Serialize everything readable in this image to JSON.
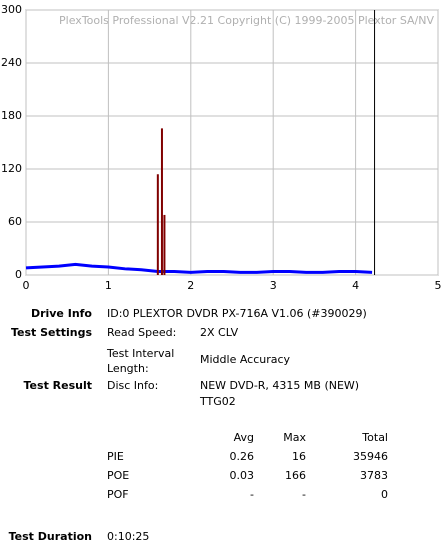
{
  "chart_data": {
    "type": "line",
    "watermark": "PlexTools Professional V2.21 Copyright (C) 1999-2005 Plextor SA/NV",
    "xlim": [
      0,
      5
    ],
    "xticks": [
      0,
      1,
      2,
      3,
      4,
      5
    ],
    "ylim": [
      0,
      300
    ],
    "yticks": [
      0,
      60,
      120,
      180,
      240,
      300
    ],
    "grid": true,
    "series": [
      {
        "name": "PIE",
        "color": "#0000ff",
        "style": "line",
        "x": [
          0,
          0.2,
          0.4,
          0.6,
          0.8,
          1.0,
          1.2,
          1.4,
          1.6,
          1.8,
          2.0,
          2.2,
          2.4,
          2.6,
          2.8,
          3.0,
          3.2,
          3.4,
          3.6,
          3.8,
          4.0,
          4.2
        ],
        "values": [
          8,
          9,
          10,
          12,
          10,
          9,
          7,
          6,
          4,
          4,
          3,
          4,
          4,
          3,
          3,
          4,
          4,
          3,
          3,
          4,
          4,
          3
        ]
      },
      {
        "name": "POE",
        "color": "#800000",
        "style": "spike",
        "x": [
          1.6,
          1.65,
          1.68
        ],
        "values": [
          114,
          166,
          68
        ]
      }
    ],
    "end_marker": 4.23
  },
  "info": {
    "drive_label": "Drive Info",
    "drive": "ID:0 PLEXTOR DVDR PX-716A V1.06 (#390029)",
    "settings_label": "Test Settings",
    "read_speed_label": "Read Speed:",
    "read_speed": "2X CLV",
    "interval_label": "Test Interval Length:",
    "interval": "Middle Accuracy",
    "result_label": "Test Result",
    "disc_label": "Disc Info:",
    "disc": "NEW DVD-R, 4315 MB (NEW)",
    "disc_id": "TTG02",
    "stats_header": [
      "Avg",
      "Max",
      "Total"
    ],
    "stats": [
      [
        "PIE",
        "0.26",
        "16",
        "35946"
      ],
      [
        "POE",
        "0.03",
        "166",
        "3783"
      ],
      [
        "POF",
        "-",
        "-",
        "0"
      ]
    ],
    "duration_label": "Test Duration",
    "duration": "0:10:25"
  }
}
